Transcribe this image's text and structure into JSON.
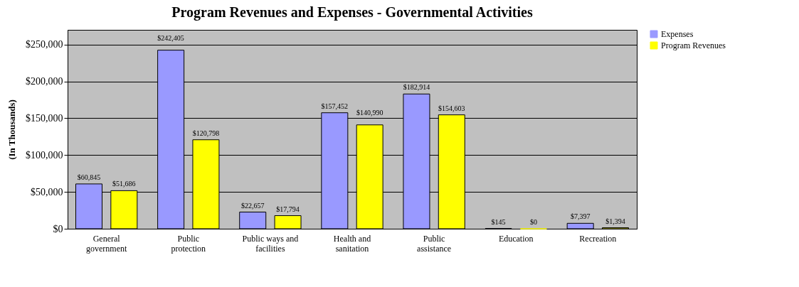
{
  "chart_data": {
    "type": "bar",
    "title": "Program Revenues and Expenses - Governmental Activities",
    "ylabel": "(In Thousands)",
    "categories": [
      "General government",
      "Public protection",
      "Public ways and facilities",
      "Health and sanitation",
      "Public assistance",
      "Education",
      "Recreation"
    ],
    "series": [
      {
        "name": "Expenses",
        "color": "#9999ff",
        "values": [
          60845,
          242405,
          22657,
          157452,
          182914,
          145,
          7397
        ],
        "value_labels": [
          "$60,845",
          "$242,405",
          "$22,657",
          "$157,452",
          "$182,914",
          "$145",
          "$7,397"
        ]
      },
      {
        "name": "Program Revenues",
        "color": "#ffff00",
        "values": [
          51686,
          120798,
          17794,
          140990,
          154603,
          0,
          1394
        ],
        "value_labels": [
          "$51,686",
          "$120,798",
          "$17,794",
          "$140,990",
          "$154,603",
          "$0",
          "$1,394"
        ]
      }
    ],
    "ylim": [
      0,
      270000
    ],
    "yticks": [
      {
        "value": 0,
        "label": "$0"
      },
      {
        "value": 50000,
        "label": "$50,000"
      },
      {
        "value": 100000,
        "label": "$100,000"
      },
      {
        "value": 150000,
        "label": "$150,000"
      },
      {
        "value": 200000,
        "label": "$200,000"
      },
      {
        "value": 250000,
        "label": "$250,000"
      }
    ],
    "grid": "y",
    "legend": "top right"
  }
}
